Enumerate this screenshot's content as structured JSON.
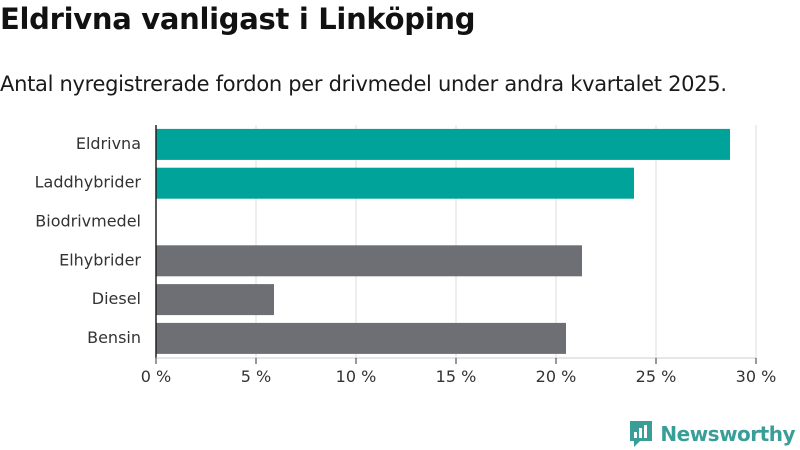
{
  "chart_data": {
    "type": "bar",
    "orientation": "horizontal",
    "title": "Eldrivna vanligast i Linköping",
    "subtitle": "Antal nyregistrerade fordon per drivmedel under andra kvartalet 2025.",
    "categories": [
      "Eldrivna",
      "Laddhybrider",
      "Biodrivmedel",
      "Elhybrider",
      "Diesel",
      "Bensin"
    ],
    "values": [
      28.7,
      23.9,
      0,
      21.3,
      5.9,
      20.5
    ],
    "colors": [
      "#00a39a",
      "#00a39a",
      "#00a39a",
      "#6e6e75",
      "#6e6e75",
      "#6e6e75"
    ],
    "xlim": [
      0,
      30
    ],
    "xticks": [
      0,
      5,
      10,
      15,
      20,
      25,
      30
    ],
    "xtick_labels": [
      "0 %",
      "5 %",
      "10 %",
      "15 %",
      "20 %",
      "25 %",
      "30 %"
    ],
    "xlabel": "",
    "ylabel": "",
    "grid": true,
    "legend": "none"
  },
  "branding": {
    "logo_text": "Newsworthy",
    "logo_icon": "bar-chart-speech-bubble-icon",
    "accent_color": "#3a9e98"
  }
}
